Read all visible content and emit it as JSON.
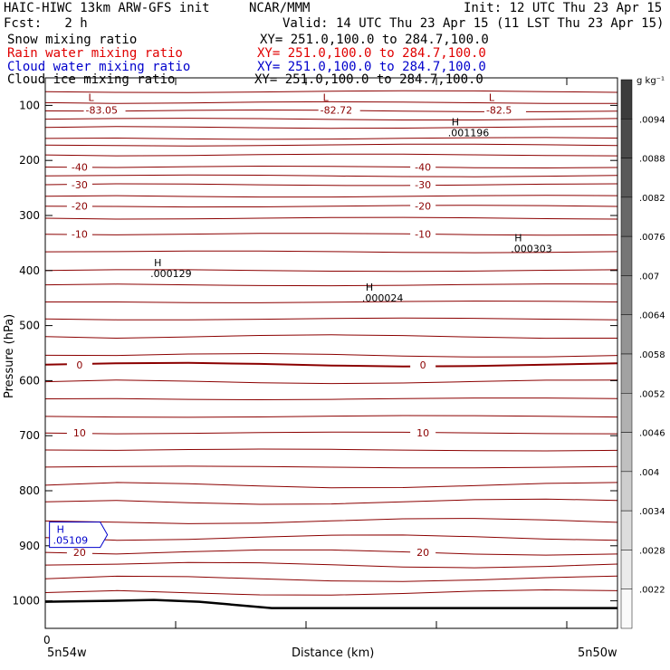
{
  "header": {
    "model": "HAIC-HIWC 13km ARW-GFS init",
    "org": "NCAR/MMM",
    "init": "Init: 12 UTC Thu 23 Apr 15",
    "fcst": "Fcst:   2 h",
    "valid": "Valid: 14 UTC Thu 23 Apr 15 (11 LST Thu 23 Apr 15)"
  },
  "fields": [
    {
      "name": "Snow mixing ratio",
      "xy": "XY= 251.0,100.0 to 284.7,100.0",
      "color": "#000000"
    },
    {
      "name": "Rain water mixing ratio",
      "xy": "XY= 251.0,100.0 to 284.7,100.0",
      "color": "#e00000"
    },
    {
      "name": "Cloud water mixing ratio",
      "xy": "XY= 251.0,100.0 to 284.7,100.0",
      "color": "#0000cc"
    },
    {
      "name": "Cloud ice mixing ratio",
      "xy": "XY= 251.0,100.0 to 284.7,100.0",
      "color": "#000000"
    }
  ],
  "chart_data": {
    "type": "contour",
    "xlabel": "Distance (km)",
    "ylabel": "Pressure (hPa)",
    "x_ticks": [
      "0"
    ],
    "x_endpoints": {
      "left": "5n54w",
      "right": "5n50w"
    },
    "y_ticks": [
      100,
      200,
      300,
      400,
      500,
      600,
      700,
      800,
      900,
      1000
    ],
    "y_scale": "linear",
    "ylim": [
      1050,
      50
    ],
    "xlim": [
      0,
      1
    ],
    "temperature_contours": [
      {
        "label": "-40",
        "pressure": 212
      },
      {
        "label": "-30",
        "pressure": 244
      },
      {
        "label": "-20",
        "pressure": 283
      },
      {
        "label": "-10",
        "pressure": 334
      },
      {
        "label": "0",
        "pressure": 571
      },
      {
        "label": "10",
        "pressure": 695
      },
      {
        "label": "20",
        "pressure": 912
      }
    ],
    "contour_pressures": [
      75,
      95,
      110,
      125,
      140,
      160,
      172,
      190,
      212,
      228,
      244,
      265,
      283,
      305,
      334,
      366,
      400,
      426,
      457,
      488,
      520,
      554,
      571,
      602,
      633,
      665,
      695,
      726,
      757,
      790,
      820,
      855,
      885,
      912,
      935,
      960,
      985
    ],
    "minima": [
      {
        "symbol": "L",
        "value": "-83.05",
        "x": 0.08,
        "pressure": 95
      },
      {
        "symbol": "L",
        "value": "-82.72",
        "x": 0.49,
        "pressure": 95
      },
      {
        "symbol": "L",
        "value": "-82.5",
        "x": 0.78,
        "pressure": 95
      }
    ],
    "maxima": [
      {
        "symbol": "H",
        "value": ".001196",
        "x": 0.71,
        "pressure": 140
      },
      {
        "symbol": "H",
        "value": ".000303",
        "x": 0.82,
        "pressure": 350
      },
      {
        "symbol": "H",
        "value": ".000129",
        "x": 0.19,
        "pressure": 395
      },
      {
        "symbol": "H",
        "value": ".000024",
        "x": 0.56,
        "pressure": 440
      },
      {
        "symbol": "H",
        "value": ".05109",
        "x": 0.02,
        "pressure": 880,
        "color": "#0000cc"
      }
    ],
    "surface_line_label": "",
    "colorbar": {
      "unit": "g kg⁻¹",
      "ticks": [
        ".0094",
        ".0088",
        ".0082",
        ".0076",
        ".007",
        ".0064",
        ".0058",
        ".0052",
        ".0046",
        ".004",
        ".0034",
        ".0028",
        ".0022"
      ]
    }
  }
}
